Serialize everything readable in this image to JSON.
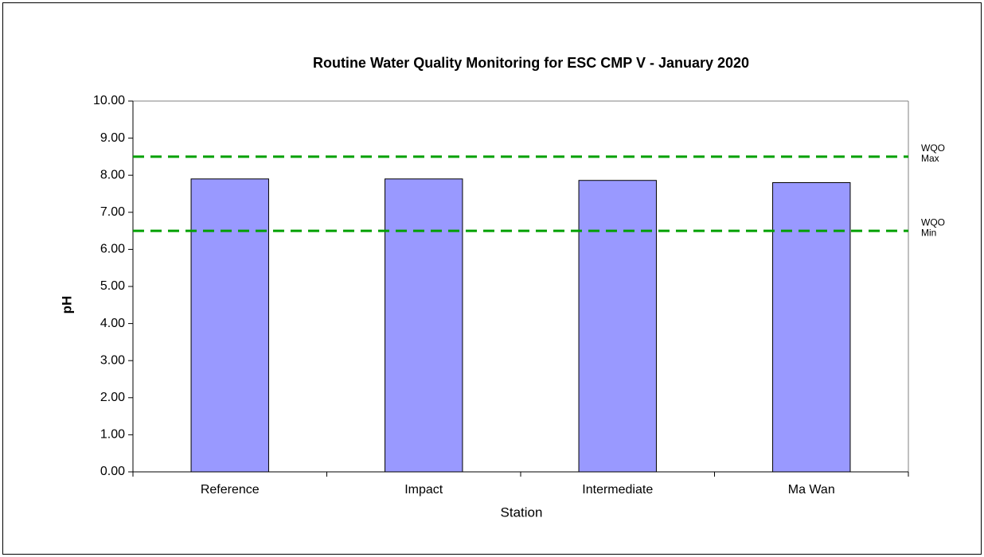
{
  "chart_data": {
    "type": "bar",
    "title": "Routine Water Quality Monitoring for ESC CMP V -  January 2020",
    "x_label": "Station",
    "y_label": "pH",
    "categories": [
      "Reference",
      "Impact",
      "Intermediate",
      "Ma Wan"
    ],
    "values": [
      7.9,
      7.9,
      7.86,
      7.8
    ],
    "color": "#9999ff",
    "ylim": [
      0,
      10
    ],
    "yticks": [
      {
        "value": 0,
        "label": "0.00"
      },
      {
        "value": 1,
        "label": "1.00"
      },
      {
        "value": 2,
        "label": "2.00"
      },
      {
        "value": 3,
        "label": "3.00"
      },
      {
        "value": 4,
        "label": "4.00"
      },
      {
        "value": 5,
        "label": "5.00"
      },
      {
        "value": 6,
        "label": "6.00"
      },
      {
        "value": 7,
        "label": "7.00"
      },
      {
        "value": 8,
        "label": "8.00"
      },
      {
        "value": 9,
        "label": "9.00"
      },
      {
        "value": 10,
        "label": "10.00"
      }
    ],
    "grid": false,
    "reference_lines": [
      {
        "value": 8.5,
        "label": [
          "WQO",
          "Max"
        ],
        "color": "#00a000"
      },
      {
        "value": 6.5,
        "label": [
          "WQO",
          "Min"
        ],
        "color": "#00a000"
      }
    ]
  }
}
